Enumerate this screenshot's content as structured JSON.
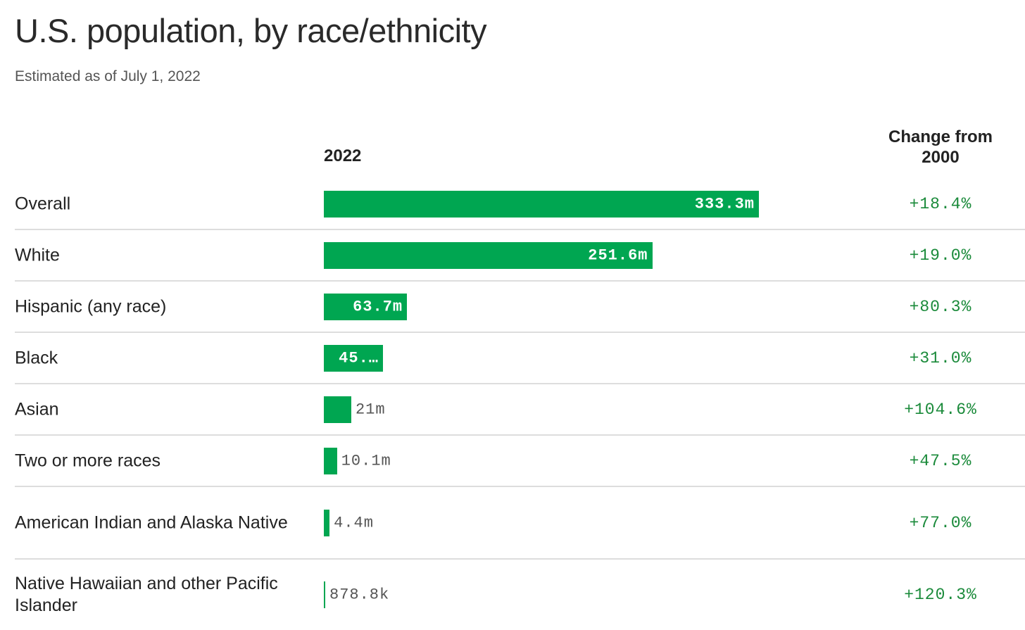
{
  "header": {
    "title": "U.S. population, by race/ethnicity",
    "subtitle": "Estimated as of July 1, 2022"
  },
  "chart_data": {
    "type": "bar",
    "orientation": "horizontal",
    "column_headers": {
      "value": "2022",
      "change": "Change from 2000"
    },
    "unit": "people (millions)",
    "bar_color": "#00a651",
    "change_color": "#1a8a3a",
    "categories": [
      "Overall",
      "White",
      "Hispanic (any race)",
      "Black",
      "Asian",
      "Two or more races",
      "American Indian and Alaska Native",
      "Native Hawaiian and other Pacific Islander"
    ],
    "values": [
      333.3,
      251.6,
      63.7,
      45.3,
      21,
      10.1,
      4.4,
      0.8788
    ],
    "value_labels": [
      "333.3m",
      "251.6m",
      "63.7m",
      "45.…",
      "21m",
      "10.1m",
      "4.4m",
      "878.8k"
    ],
    "change_labels": [
      "+18.4%",
      "+19.0%",
      "+80.3%",
      "+31.0%",
      "+104.6%",
      "+47.5%",
      "+77.0%",
      "+120.3%"
    ]
  }
}
